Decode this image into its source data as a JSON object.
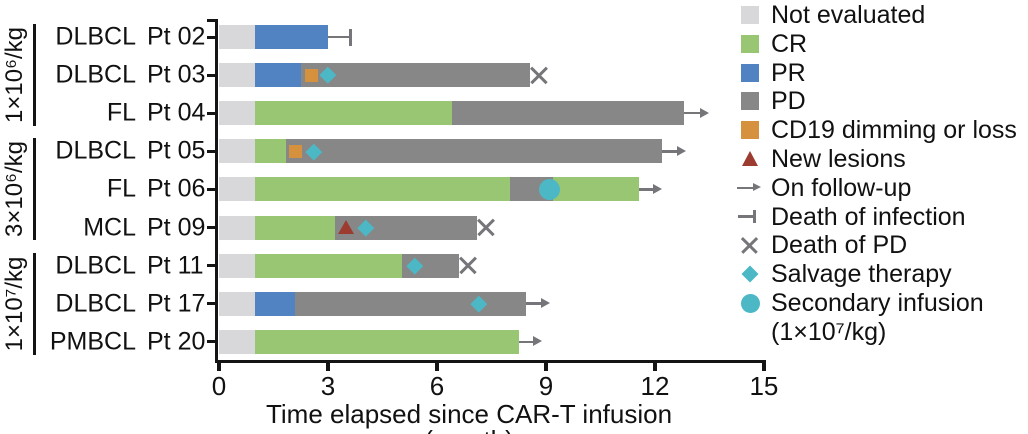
{
  "chart_data": {
    "type": "bar",
    "subtype": "swimmer-plot",
    "orientation": "horizontal",
    "xlabel": "Time elapsed since CAR-T infusion (month)",
    "x_ticks": [
      0,
      3,
      6,
      9,
      12,
      15
    ],
    "xlim": [
      0,
      15
    ],
    "grid": false,
    "legend_position": "right",
    "colors": {
      "not_evaluated": "#d8d8da",
      "cr": "#98c672",
      "pr": "#5182c2",
      "pd": "#878787",
      "cd19": "#d6913f",
      "new_lesions": "#9c3c30",
      "salvage": "#4cb8c5",
      "annotation": "#76767a",
      "axis": "#141414"
    },
    "groups": [
      {
        "label": "1×10⁶/kg",
        "row_start": 0,
        "row_end": 2
      },
      {
        "label": "3×10⁶/kg",
        "row_start": 3,
        "row_end": 5
      },
      {
        "label": "1×10⁷/kg",
        "row_start": 6,
        "row_end": 8
      }
    ],
    "rows": [
      {
        "group": 0,
        "disease": "DLBCL",
        "patient": "Pt 02",
        "segments": [
          [
            "not_evaluated",
            0,
            1
          ],
          [
            "pr",
            1,
            3
          ]
        ],
        "markers": [
          {
            "type": "death_of_infection",
            "from": 3.0,
            "to": 3.65
          }
        ]
      },
      {
        "group": 0,
        "disease": "DLBCL",
        "patient": "Pt 03",
        "segments": [
          [
            "not_evaluated",
            0,
            1
          ],
          [
            "pr",
            1,
            2.25
          ],
          [
            "pd",
            2.25,
            8.55
          ]
        ],
        "markers": [
          {
            "type": "cd19",
            "at": 2.55
          },
          {
            "type": "salvage",
            "at": 3.0
          },
          {
            "type": "death_of_pd",
            "at": 8.8
          }
        ]
      },
      {
        "group": 0,
        "disease": "FL",
        "patient": "Pt 04",
        "segments": [
          [
            "not_evaluated",
            0,
            1
          ],
          [
            "cr",
            1,
            6.4
          ],
          [
            "pd",
            6.4,
            12.8
          ]
        ],
        "markers": [
          {
            "type": "follow_up",
            "from": 12.8,
            "to": 13.5
          }
        ]
      },
      {
        "group": 1,
        "disease": "DLBCL",
        "patient": "Pt 05",
        "segments": [
          [
            "not_evaluated",
            0,
            1
          ],
          [
            "cr",
            1,
            1.85
          ],
          [
            "pd",
            1.85,
            12.2
          ]
        ],
        "markers": [
          {
            "type": "cd19",
            "at": 2.1
          },
          {
            "type": "salvage",
            "at": 2.6
          },
          {
            "type": "follow_up",
            "from": 12.2,
            "to": 12.85
          }
        ]
      },
      {
        "group": 1,
        "disease": "FL",
        "patient": "Pt 06",
        "segments": [
          [
            "not_evaluated",
            0,
            1
          ],
          [
            "cr",
            1,
            8.0
          ],
          [
            "pd",
            8.0,
            9.2
          ],
          [
            "cr",
            9.2,
            11.55
          ]
        ],
        "markers": [
          {
            "type": "secondary_infusion",
            "at": 9.1
          },
          {
            "type": "follow_up",
            "from": 11.55,
            "to": 12.2
          }
        ]
      },
      {
        "group": 1,
        "disease": "MCL",
        "patient": "Pt 09",
        "segments": [
          [
            "not_evaluated",
            0,
            1
          ],
          [
            "cr",
            1,
            3.2
          ],
          [
            "pd",
            3.2,
            7.1
          ]
        ],
        "markers": [
          {
            "type": "new_lesions",
            "at": 3.5
          },
          {
            "type": "salvage",
            "at": 4.05
          },
          {
            "type": "death_of_pd",
            "at": 7.35
          }
        ]
      },
      {
        "group": 2,
        "disease": "DLBCL",
        "patient": "Pt 11",
        "segments": [
          [
            "not_evaluated",
            0,
            1
          ],
          [
            "cr",
            1,
            5.05
          ],
          [
            "pd",
            5.05,
            6.6
          ]
        ],
        "markers": [
          {
            "type": "salvage",
            "at": 5.4
          },
          {
            "type": "death_of_pd",
            "at": 6.85
          }
        ]
      },
      {
        "group": 2,
        "disease": "DLBCL",
        "patient": "Pt 17",
        "segments": [
          [
            "not_evaluated",
            0,
            1
          ],
          [
            "pr",
            1,
            2.1
          ],
          [
            "pd",
            2.1,
            8.45
          ]
        ],
        "markers": [
          {
            "type": "salvage",
            "at": 7.15
          },
          {
            "type": "follow_up",
            "from": 8.45,
            "to": 9.1
          }
        ]
      },
      {
        "group": 2,
        "disease": "PMBCL",
        "patient": "Pt 20",
        "segments": [
          [
            "not_evaluated",
            0,
            1
          ],
          [
            "cr",
            1,
            8.25
          ]
        ],
        "markers": [
          {
            "type": "follow_up",
            "from": 8.25,
            "to": 8.9
          }
        ]
      }
    ],
    "legend": [
      {
        "glyph": "square",
        "color_key": "not_evaluated",
        "label": "Not evaluated"
      },
      {
        "glyph": "square",
        "color_key": "cr",
        "label": "CR"
      },
      {
        "glyph": "square",
        "color_key": "pr",
        "label": "PR"
      },
      {
        "glyph": "square",
        "color_key": "pd",
        "label": "PD"
      },
      {
        "glyph": "square",
        "color_key": "cd19",
        "label": "CD19 dimming or loss"
      },
      {
        "glyph": "triangle",
        "color_key": "new_lesions",
        "label": "New lesions"
      },
      {
        "glyph": "arrow",
        "color_key": "annotation",
        "label": "On follow-up"
      },
      {
        "glyph": "end_bar",
        "color_key": "annotation",
        "label": "Death of infection"
      },
      {
        "glyph": "x",
        "color_key": "annotation",
        "label": "Death of PD"
      },
      {
        "glyph": "diamond",
        "color_key": "salvage",
        "label": "Salvage therapy"
      },
      {
        "glyph": "circle",
        "color_key": "salvage",
        "label": "Secondary infusion",
        "sub_label": "(1×10⁷/kg)"
      }
    ]
  }
}
